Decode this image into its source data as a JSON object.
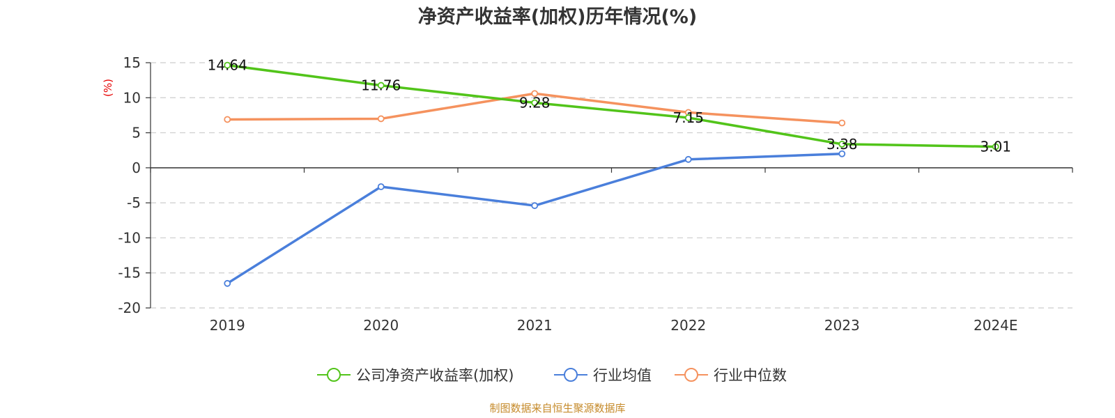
{
  "chart_data": {
    "type": "line",
    "title": "净资产收益率(加权)历年情况(%)",
    "ylabel": "(%)",
    "xlabel": "",
    "categories": [
      "2019",
      "2020",
      "2021",
      "2022",
      "2023",
      "2024E"
    ],
    "ylim": [
      -20,
      15
    ],
    "yticks": [
      15,
      10,
      5,
      0,
      -5,
      -10,
      -15,
      -20
    ],
    "grid": true,
    "legend_position": "bottom",
    "series": [
      {
        "name": "公司净资产收益率(加权)",
        "color": "#52c41a",
        "values": [
          14.64,
          11.76,
          9.28,
          7.15,
          3.38,
          3.01
        ],
        "labels": [
          "14.64",
          "11.76",
          "9.28",
          "7.15",
          "3.38",
          "3.01"
        ]
      },
      {
        "name": "行业均值",
        "color": "#4a7fdb",
        "values": [
          -16.5,
          -2.7,
          -5.4,
          1.2,
          2.0,
          null
        ]
      },
      {
        "name": "行业中位数",
        "color": "#f5925e",
        "values": [
          6.9,
          7.0,
          10.6,
          7.9,
          6.4,
          null
        ]
      }
    ]
  },
  "source": "制图数据来自恒生聚源数据库"
}
